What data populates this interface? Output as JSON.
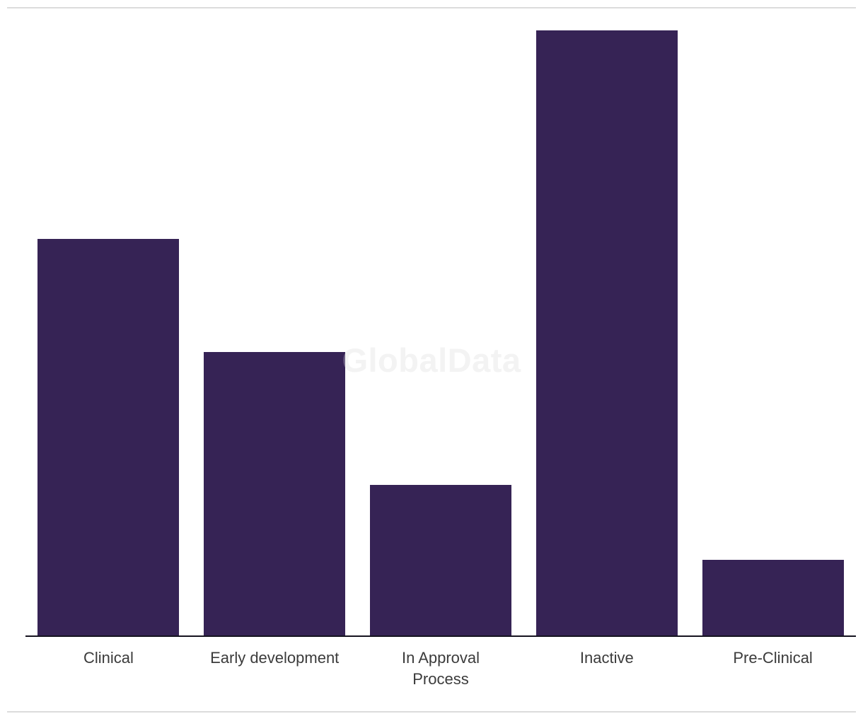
{
  "chart_data": {
    "type": "bar",
    "title": "",
    "xlabel": "",
    "ylabel": "",
    "categories": [
      "Clinical",
      "Early development",
      "In Approval Process",
      "Inactive",
      "Pre-Clinical"
    ],
    "category_label_lines": [
      [
        "Clinical"
      ],
      [
        "Early development"
      ],
      [
        "In Approval",
        "Process"
      ],
      [
        "Inactive"
      ],
      [
        "Pre-Clinical"
      ]
    ],
    "values_pct_of_max": [
      65.6,
      46.9,
      25.0,
      100.0,
      12.6
    ],
    "value_axis_visible": false,
    "value_tick_labels": [],
    "grid": false,
    "legend": false,
    "bar_color": "#362355",
    "axis_line_color": "#15131f",
    "label_color": "#3b3b3b"
  },
  "watermark": {
    "text": "GlobalData",
    "color": "#f3f3f3",
    "overlay_color": "rgba(244,244,244,0.30)"
  },
  "dividers": {
    "color": "#dcdcdc"
  }
}
